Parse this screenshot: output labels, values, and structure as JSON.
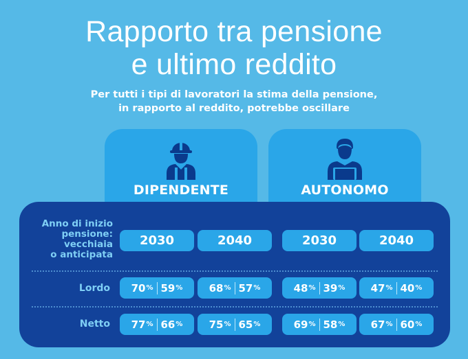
{
  "header": {
    "title_line1": "Rapporto tra pensione",
    "title_line2": "e ultimo reddito",
    "subtitle_line1": "Per tutti i tipi di lavoratori la stima della pensione,",
    "subtitle_line2": "in rapporto al reddito, potrebbe oscillare"
  },
  "categories": {
    "dipendente": {
      "label": "DIPENDENTE",
      "icon": "worker-helmet-icon"
    },
    "autonomo": {
      "label": "AUTONOMO",
      "icon": "person-laptop-icon"
    }
  },
  "table": {
    "header_label": [
      "Anno di inizio",
      "pensione:",
      "vecchiaia",
      "o anticipata"
    ],
    "years": [
      "2030",
      "2040",
      "2030",
      "2040"
    ],
    "rows": [
      {
        "label": "Lordo",
        "cells": [
          {
            "a": "70",
            "b": "59"
          },
          {
            "a": "68",
            "b": "57"
          },
          {
            "a": "48",
            "b": "39"
          },
          {
            "a": "47",
            "b": "40"
          }
        ]
      },
      {
        "label": "Netto",
        "cells": [
          {
            "a": "77",
            "b": "66"
          },
          {
            "a": "75",
            "b": "65"
          },
          {
            "a": "69",
            "b": "58"
          },
          {
            "a": "67",
            "b": "60"
          }
        ]
      }
    ],
    "percent_symbol": "%"
  },
  "colors": {
    "background": "#55b9e7",
    "tab": "#2aa6e8",
    "panel": "#12429a",
    "label": "#7fcff5",
    "icon": "#0a3a8c"
  }
}
